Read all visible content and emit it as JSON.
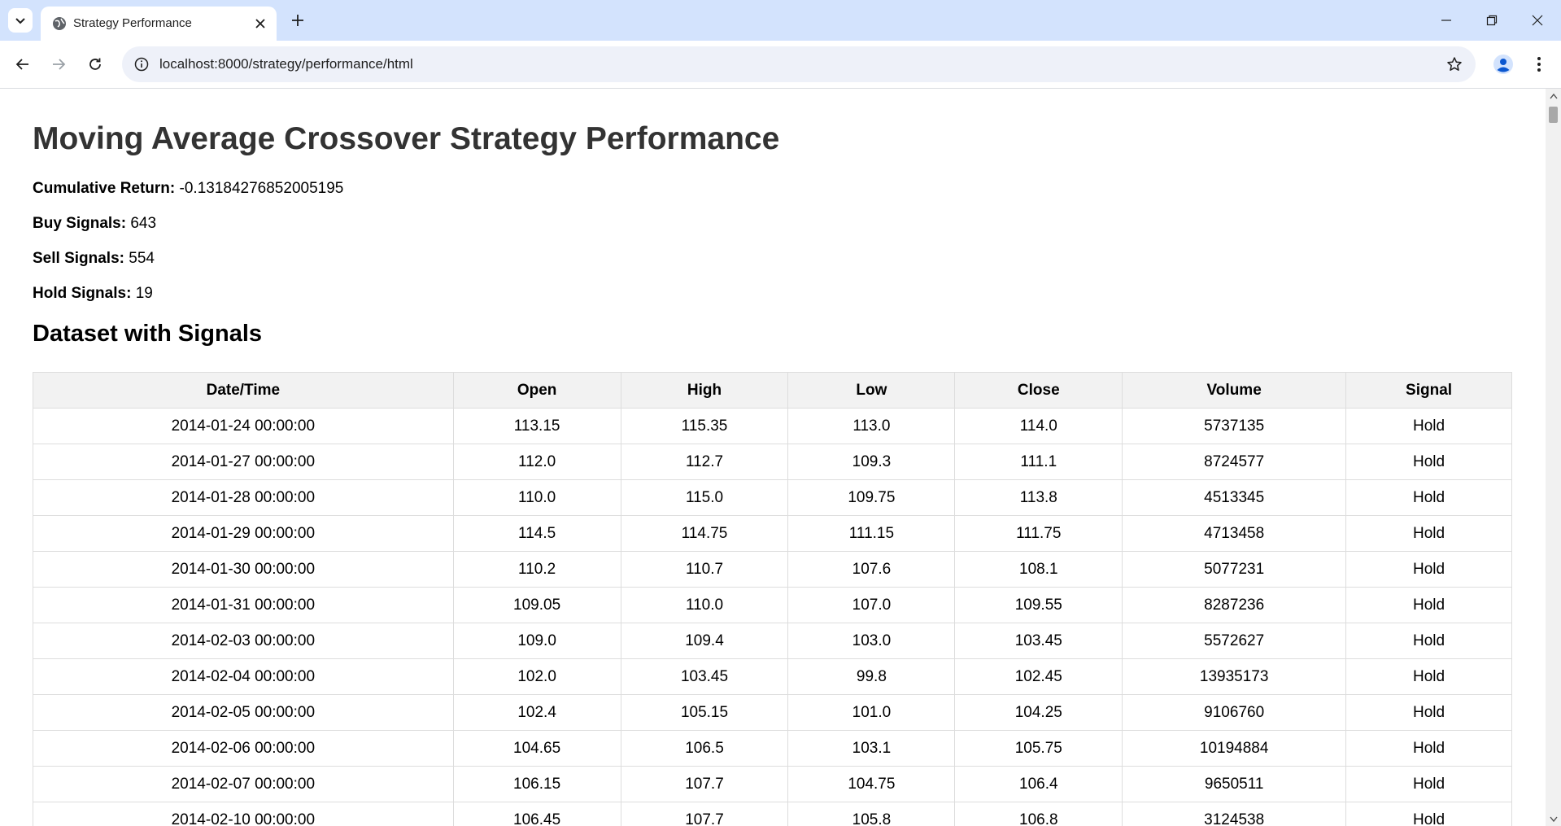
{
  "browser": {
    "tab_title": "Strategy Performance",
    "url": "localhost:8000/strategy/performance/html"
  },
  "colors": {
    "tabstrip_bg": "#d3e3fd",
    "omnibox_bg": "#eef1f9",
    "table_header_bg": "#f2f2f2",
    "table_border": "#dddddd",
    "profile_accent": "#0b57d0"
  },
  "icons": {
    "tab_search": "chevron-down-icon",
    "favicon": "globe-icon",
    "tab_close": "close-icon",
    "new_tab": "plus-icon",
    "minimize": "minimize-icon",
    "restore": "restore-icon",
    "close_window": "close-icon",
    "back": "arrow-left-icon",
    "forward": "arrow-right-icon",
    "reload": "reload-icon",
    "site_info": "info-icon",
    "bookmark": "star-icon",
    "profile": "person-icon",
    "menu": "kebab-icon"
  },
  "page": {
    "title": "Moving Average Crossover Strategy Performance",
    "stats": {
      "cumulative_return_label": "Cumulative Return:",
      "cumulative_return_value": "-0.13184276852005195",
      "buy_label": "Buy Signals:",
      "buy_value": "643",
      "sell_label": "Sell Signals:",
      "sell_value": "554",
      "hold_label": "Hold Signals:",
      "hold_value": "19"
    },
    "section_title": "Dataset with Signals",
    "table": {
      "headers": [
        "Date/Time",
        "Open",
        "High",
        "Low",
        "Close",
        "Volume",
        "Signal"
      ],
      "rows": [
        [
          "2014-01-24 00:00:00",
          "113.15",
          "115.35",
          "113.0",
          "114.0",
          "5737135",
          "Hold"
        ],
        [
          "2014-01-27 00:00:00",
          "112.0",
          "112.7",
          "109.3",
          "111.1",
          "8724577",
          "Hold"
        ],
        [
          "2014-01-28 00:00:00",
          "110.0",
          "115.0",
          "109.75",
          "113.8",
          "4513345",
          "Hold"
        ],
        [
          "2014-01-29 00:00:00",
          "114.5",
          "114.75",
          "111.15",
          "111.75",
          "4713458",
          "Hold"
        ],
        [
          "2014-01-30 00:00:00",
          "110.2",
          "110.7",
          "107.6",
          "108.1",
          "5077231",
          "Hold"
        ],
        [
          "2014-01-31 00:00:00",
          "109.05",
          "110.0",
          "107.0",
          "109.55",
          "8287236",
          "Hold"
        ],
        [
          "2014-02-03 00:00:00",
          "109.0",
          "109.4",
          "103.0",
          "103.45",
          "5572627",
          "Hold"
        ],
        [
          "2014-02-04 00:00:00",
          "102.0",
          "103.45",
          "99.8",
          "102.45",
          "13935173",
          "Hold"
        ],
        [
          "2014-02-05 00:00:00",
          "102.4",
          "105.15",
          "101.0",
          "104.25",
          "9106760",
          "Hold"
        ],
        [
          "2014-02-06 00:00:00",
          "104.65",
          "106.5",
          "103.1",
          "105.75",
          "10194884",
          "Hold"
        ],
        [
          "2014-02-07 00:00:00",
          "106.15",
          "107.7",
          "104.75",
          "106.4",
          "9650511",
          "Hold"
        ],
        [
          "2014-02-10 00:00:00",
          "106.45",
          "107.7",
          "105.8",
          "106.8",
          "3124538",
          "Hold"
        ]
      ]
    }
  }
}
